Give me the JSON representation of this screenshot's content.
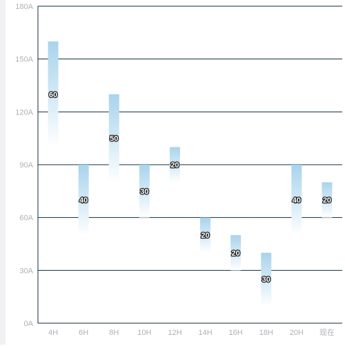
{
  "chart_data": {
    "type": "bar",
    "subtype": "floating-range",
    "categories": [
      "4H",
      "6H",
      "8H",
      "10H",
      "12H",
      "14H",
      "16H",
      "18H",
      "20H",
      "现在"
    ],
    "series": [
      {
        "top": [
          160,
          90,
          130,
          90,
          100,
          60,
          50,
          40,
          90,
          80
        ],
        "range": [
          60,
          40,
          50,
          30,
          20,
          20,
          20,
          30,
          40,
          20
        ],
        "labels": [
          "60",
          "40",
          "50",
          "30",
          "20",
          "20",
          "20",
          "30",
          "40",
          "20"
        ]
      }
    ],
    "y_ticks": [
      "0A",
      "30A",
      "60A",
      "90A",
      "120A",
      "150A",
      "180A"
    ],
    "ylim": [
      0,
      180
    ],
    "grid": true,
    "colors": {
      "bar_top": "#a9d3ec",
      "bar_bottom": "#ffffff",
      "grid": "#0d2b3e",
      "axis": "#0d2b3e",
      "tick_text": "#b0b0b0",
      "label_fill": "#ffffff",
      "label_stroke": "#222222"
    }
  }
}
